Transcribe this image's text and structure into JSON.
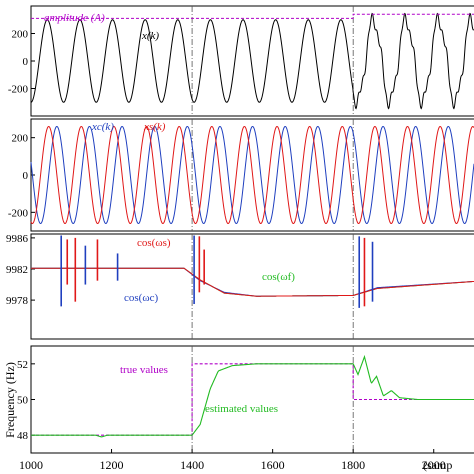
{
  "chart_data": [
    {
      "type": "line",
      "panel": 1,
      "ylim": [
        -400,
        400
      ],
      "yticks": [
        200,
        0,
        -200
      ],
      "ytick_labels": [
        "200",
        "0",
        "-200"
      ],
      "annotations": [
        "amplitude (A)",
        "x(k)"
      ],
      "series": [
        {
          "name": "x(k)",
          "color": "#000000",
          "amplitude": 300,
          "period_samples": 81,
          "distortion_from_sample": 1800
        },
        {
          "name": "amplitude (A)",
          "color": "#b000c8",
          "dashed": true,
          "values": [
            {
              "x": 1000,
              "y": 310
            },
            {
              "x": 1800,
              "y": 310
            },
            {
              "x": 1800,
              "y": 340
            },
            {
              "x": 2100,
              "y": 340
            }
          ]
        }
      ]
    },
    {
      "type": "line",
      "panel": 2,
      "ylim": [
        -300,
        300
      ],
      "yticks": [
        200,
        0,
        -200
      ],
      "ytick_labels": [
        "200",
        "0",
        "-200"
      ],
      "annotations": [
        "xc(k)",
        "xs(k)"
      ],
      "series": [
        {
          "name": "xc(k)",
          "color": "#1f3fbf",
          "amplitude": 260,
          "period_samples": 81
        },
        {
          "name": "xs(k)",
          "color": "#e01818",
          "amplitude": 260,
          "period_samples": 81
        }
      ]
    },
    {
      "type": "line",
      "panel": 3,
      "ylim": [
        0.9973,
        0.99865
      ],
      "yticks": [
        0.9986,
        0.9982,
        0.9978
      ],
      "ytick_labels": [
        "9986",
        "9982",
        "9978"
      ],
      "annotations": [
        "cos(ωs)",
        "cos(ωf)",
        "cos(ωc)"
      ],
      "series": [
        {
          "name": "cos(ωf)",
          "color": "#22bb22",
          "values": [
            {
              "x": 1000,
              "y": 0.99821
            },
            {
              "x": 1380,
              "y": 0.99821
            },
            {
              "x": 1420,
              "y": 0.99806
            },
            {
              "x": 1480,
              "y": 0.99789
            },
            {
              "x": 1560,
              "y": 0.99785
            },
            {
              "x": 1800,
              "y": 0.99786
            },
            {
              "x": 1860,
              "y": 0.99795
            },
            {
              "x": 2100,
              "y": 0.99804
            }
          ]
        },
        {
          "name": "cos(ωc)",
          "color": "#1f3fbf",
          "values": [
            {
              "x": 1000,
              "y": 0.99821
            },
            {
              "x": 1380,
              "y": 0.99821
            },
            {
              "x": 1420,
              "y": 0.99805
            },
            {
              "x": 1480,
              "y": 0.9979
            },
            {
              "x": 1560,
              "y": 0.99785
            },
            {
              "x": 1800,
              "y": 0.99786
            },
            {
              "x": 1860,
              "y": 0.99796
            },
            {
              "x": 2100,
              "y": 0.99804
            }
          ]
        },
        {
          "name": "cos(ωs)",
          "color": "#e01818",
          "values": [
            {
              "x": 1000,
              "y": 0.99821
            },
            {
              "x": 1380,
              "y": 0.99821
            },
            {
              "x": 1420,
              "y": 0.99806
            },
            {
              "x": 1480,
              "y": 0.99789
            },
            {
              "x": 1560,
              "y": 0.99785
            },
            {
              "x": 1800,
              "y": 0.99786
            },
            {
              "x": 1860,
              "y": 0.99795
            },
            {
              "x": 2100,
              "y": 0.99804
            }
          ]
        }
      ],
      "spikes": [
        {
          "x": 1075,
          "color": "#1f3fbf",
          "top": 0.99863,
          "bottom": 0.99772
        },
        {
          "x": 1090,
          "color": "#e01818",
          "top": 0.99858,
          "bottom": 0.998
        },
        {
          "x": 1110,
          "color": "#e01818",
          "top": 0.9986,
          "bottom": 0.99778
        },
        {
          "x": 1135,
          "color": "#1f3fbf",
          "top": 0.9985,
          "bottom": 0.998
        },
        {
          "x": 1165,
          "color": "#e01818",
          "top": 0.99858,
          "bottom": 0.99805
        },
        {
          "x": 1215,
          "color": "#1f3fbf",
          "top": 0.9984,
          "bottom": 0.99805
        },
        {
          "x": 1405,
          "color": "#1f3fbf",
          "top": 0.99863,
          "bottom": 0.99775
        },
        {
          "x": 1418,
          "color": "#e01818",
          "top": 0.99862,
          "bottom": 0.9979
        },
        {
          "x": 1430,
          "color": "#e01818",
          "top": 0.99845,
          "bottom": 0.998
        },
        {
          "x": 1815,
          "color": "#1f3fbf",
          "top": 0.99862,
          "bottom": 0.9977
        },
        {
          "x": 1828,
          "color": "#e01818",
          "top": 0.9986,
          "bottom": 0.99772
        },
        {
          "x": 1848,
          "color": "#1f3fbf",
          "top": 0.99855,
          "bottom": 0.99778
        }
      ]
    },
    {
      "type": "line",
      "panel": 4,
      "ylim": [
        47,
        53
      ],
      "yticks": [
        52,
        50,
        48
      ],
      "ytick_labels": [
        "52",
        "50",
        "48"
      ],
      "ylabel": "Frequency (Hz)",
      "xlabel": "(samp",
      "xlim": [
        1000,
        2100
      ],
      "xticks": [
        1000,
        1200,
        1400,
        1600,
        1800,
        2000
      ],
      "xtick_labels": [
        "1000",
        "1200",
        "1400",
        "1600",
        "1800",
        "2000"
      ],
      "annotations": [
        "true values",
        "estimated values"
      ],
      "series": [
        {
          "name": "true values",
          "color": "#b000c8",
          "dashed": true,
          "values": [
            {
              "x": 1000,
              "y": 48
            },
            {
              "x": 1400,
              "y": 48
            },
            {
              "x": 1400,
              "y": 52
            },
            {
              "x": 1800,
              "y": 52
            },
            {
              "x": 1800,
              "y": 50
            },
            {
              "x": 2100,
              "y": 50
            }
          ]
        },
        {
          "name": "estimated values",
          "color": "#22bb22",
          "values": [
            {
              "x": 1000,
              "y": 48
            },
            {
              "x": 1160,
              "y": 48
            },
            {
              "x": 1175,
              "y": 47.9
            },
            {
              "x": 1190,
              "y": 48
            },
            {
              "x": 1400,
              "y": 48
            },
            {
              "x": 1420,
              "y": 48.6
            },
            {
              "x": 1445,
              "y": 50.6
            },
            {
              "x": 1465,
              "y": 51.6
            },
            {
              "x": 1500,
              "y": 51.9
            },
            {
              "x": 1560,
              "y": 52
            },
            {
              "x": 1800,
              "y": 52
            },
            {
              "x": 1812,
              "y": 51.4
            },
            {
              "x": 1828,
              "y": 52.4
            },
            {
              "x": 1845,
              "y": 50.9
            },
            {
              "x": 1858,
              "y": 51.3
            },
            {
              "x": 1875,
              "y": 50.2
            },
            {
              "x": 1895,
              "y": 50.5
            },
            {
              "x": 1915,
              "y": 50.1
            },
            {
              "x": 1960,
              "y": 50
            },
            {
              "x": 2100,
              "y": 50
            }
          ]
        }
      ]
    }
  ]
}
